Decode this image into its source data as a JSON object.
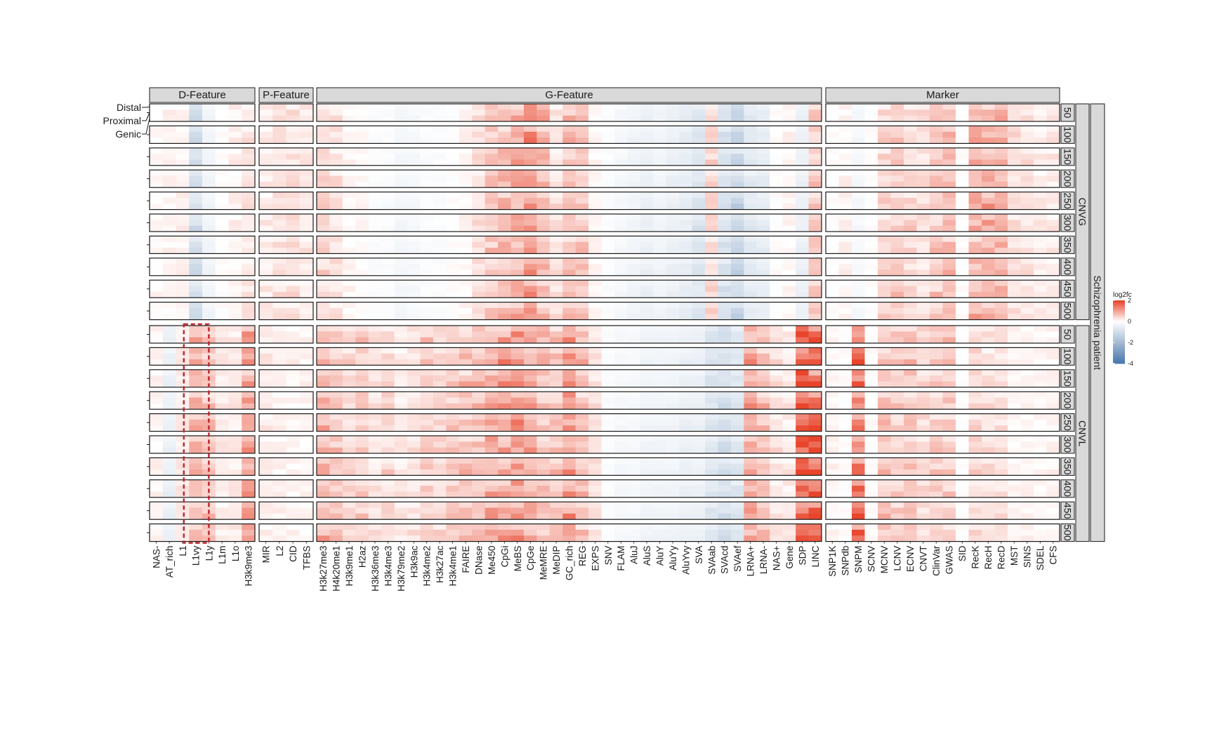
{
  "chart_data": {
    "type": "heatmap",
    "title": "",
    "legend": {
      "title": "log2fc",
      "ticks": [
        2,
        0,
        -2,
        -4
      ],
      "range": [
        -4,
        2
      ],
      "placement": "right",
      "colors": {
        "low": "#4a78ab",
        "mid": "#ffffff",
        "high": "#e8452c"
      }
    },
    "feature_groups": [
      {
        "name": "D-Feature",
        "features": [
          "NAS-",
          "AT_rich",
          "L1",
          "L1vy",
          "L1y",
          "L1m",
          "L1o",
          "H3k9me3"
        ]
      },
      {
        "name": "P-Feature",
        "features": [
          "MIR",
          "L2",
          "CID",
          "TFBS"
        ]
      },
      {
        "name": "G-Feature",
        "features": [
          "H3k27me3",
          "H4k20me1",
          "H3k9me1",
          "H2az",
          "H3k36me3",
          "H3k4me3",
          "H3k79me2",
          "H3k9ac",
          "H3k4me2",
          "H3k27ac",
          "H3k4me1",
          "FAIRE",
          "DNase",
          "Me450",
          "CpGi",
          "MeBS",
          "CpGe",
          "MeMRE",
          "MeDIP",
          "GC_rich",
          "REG",
          "EXPS",
          "SNV",
          "FLAM",
          "AluJ",
          "AluS",
          "AluY",
          "AluYy",
          "AluYvy",
          "SVA",
          "SVAab",
          "SVAcd",
          "SVAef",
          "LRNA+",
          "LRNA-",
          "NAS+",
          "Gene",
          "SDP",
          "LINC"
        ]
      },
      {
        "name": "Marker",
        "features": [
          "SNP1K",
          "SNPdb",
          "SNPM",
          "SCNV",
          "MCNV",
          "LCNV",
          "ECNV",
          "CNVT",
          "ClinVar",
          "GWAS",
          "SID",
          "RecK",
          "RecH",
          "RecD",
          "MST",
          "SINS",
          "SDEL",
          "CFS"
        ]
      }
    ],
    "row_regions": [
      "Distal",
      "Proximal",
      "Genic"
    ],
    "window_sizes": [
      "50",
      "100",
      "150",
      "200",
      "250",
      "300",
      "350",
      "400",
      "450",
      "500"
    ],
    "conditions": [
      "CNVG",
      "CNVL"
    ],
    "outer_label": "Schizophrenia patient",
    "highlight": {
      "group": "D-Feature",
      "feature": "L1vy",
      "condition": "CNVL",
      "style": "dashed red box"
    },
    "feature_profiles": {
      "CNVG": {
        "D-Feature": [
          0.05,
          0.1,
          0.15,
          -0.9,
          -0.3,
          0.0,
          0.15,
          0.25
        ],
        "P-Feature": [
          0.2,
          0.3,
          0.3,
          0.2
        ],
        "G-Feature": [
          0.4,
          0.3,
          0.1,
          0.05,
          -0.1,
          -0.1,
          -0.25,
          -0.2,
          -0.1,
          -0.1,
          0.0,
          0.1,
          0.3,
          0.6,
          0.7,
          0.8,
          1.1,
          0.7,
          0.3,
          0.6,
          0.6,
          0.1,
          -0.1,
          -0.2,
          -0.3,
          -0.4,
          -0.3,
          -0.4,
          -0.5,
          -0.7,
          0.4,
          -0.8,
          -1.1,
          -0.6,
          -0.5,
          0.0,
          0.1,
          -0.4,
          0.5
        ],
        "Marker": [
          0.0,
          0.1,
          -0.2,
          0.0,
          0.4,
          0.5,
          0.4,
          0.3,
          0.5,
          0.7,
          0.0,
          0.8,
          0.8,
          0.7,
          0.3,
          0.3,
          0.2,
          0.2
        ]
      },
      "CNVL": {
        "D-Feature": [
          0.1,
          -0.4,
          0.2,
          0.8,
          0.6,
          0.2,
          0.2,
          0.9
        ],
        "P-Feature": [
          0.2,
          0.1,
          0.1,
          0.1
        ],
        "G-Feature": [
          0.7,
          0.6,
          0.4,
          0.5,
          0.3,
          0.4,
          0.2,
          0.3,
          0.5,
          0.4,
          0.5,
          0.6,
          0.6,
          0.9,
          0.9,
          1.0,
          0.9,
          0.6,
          0.6,
          1.0,
          0.6,
          0.3,
          -0.1,
          -0.2,
          -0.2,
          -0.3,
          -0.3,
          -0.3,
          -0.4,
          -0.4,
          -0.7,
          -0.9,
          -0.7,
          0.8,
          0.6,
          0.3,
          0.2,
          1.8,
          1.6
        ],
        "Marker": [
          0.1,
          0.0,
          1.5,
          0.0,
          0.6,
          0.5,
          0.6,
          0.4,
          0.5,
          0.5,
          0.0,
          0.4,
          0.3,
          0.3,
          0.1,
          0.1,
          0.1,
          0.1
        ]
      }
    }
  }
}
